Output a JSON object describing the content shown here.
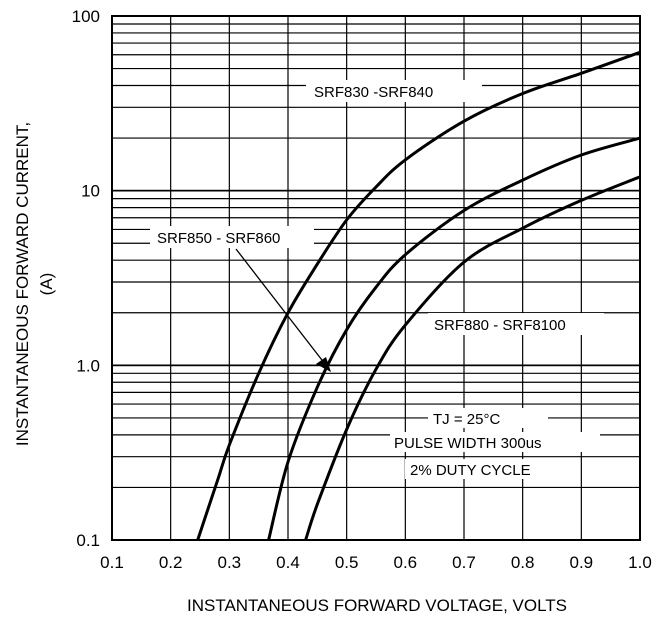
{
  "chart_data": {
    "type": "line",
    "xlabel": "INSTANTANEOUS FORWARD VOLTAGE, VOLTS",
    "ylabel_lines": [
      "INSTANTANEOUS FORWARD CURRENT,",
      "(A)"
    ],
    "xlim": [
      0.1,
      1.0
    ],
    "ylim": [
      0.1,
      100
    ],
    "y_scale": "log",
    "grid": true,
    "x_ticks": [
      "0.1",
      "0.2",
      "0.3",
      "0.4",
      "0.5",
      "0.6",
      "0.7",
      "0.8",
      "0.9",
      "1.0"
    ],
    "y_ticks": [
      {
        "value": 0.1,
        "label": "0.1"
      },
      {
        "value": 1,
        "label": "1.0"
      },
      {
        "value": 10,
        "label": "10"
      },
      {
        "value": 100,
        "label": "100"
      }
    ],
    "series": [
      {
        "name": "SRF830 -SRF840",
        "x": [
          0.246,
          0.28,
          0.3,
          0.35,
          0.4,
          0.45,
          0.5,
          0.55,
          0.6,
          0.7,
          0.8,
          0.9,
          1.0
        ],
        "y": [
          0.1,
          0.22,
          0.35,
          0.9,
          2.0,
          3.8,
          6.8,
          10.5,
          15,
          25,
          36,
          47,
          62
        ]
      },
      {
        "name": "SRF850 - SRF860",
        "x": [
          0.367,
          0.4,
          0.45,
          0.5,
          0.55,
          0.6,
          0.7,
          0.8,
          0.9,
          1.0
        ],
        "y": [
          0.1,
          0.28,
          0.75,
          1.6,
          2.8,
          4.3,
          7.7,
          11.5,
          16,
          20
        ]
      },
      {
        "name": "SRF880 - SRF8100",
        "x": [
          0.43,
          0.45,
          0.5,
          0.55,
          0.6,
          0.7,
          0.8,
          0.9,
          1.0
        ],
        "y": [
          0.1,
          0.16,
          0.43,
          0.95,
          1.7,
          3.9,
          6.1,
          8.8,
          12
        ]
      }
    ],
    "annotations": [
      "TJ = 25°C",
      "PULSE WIDTH 300us",
      "2% DUTY CYCLE"
    ]
  }
}
